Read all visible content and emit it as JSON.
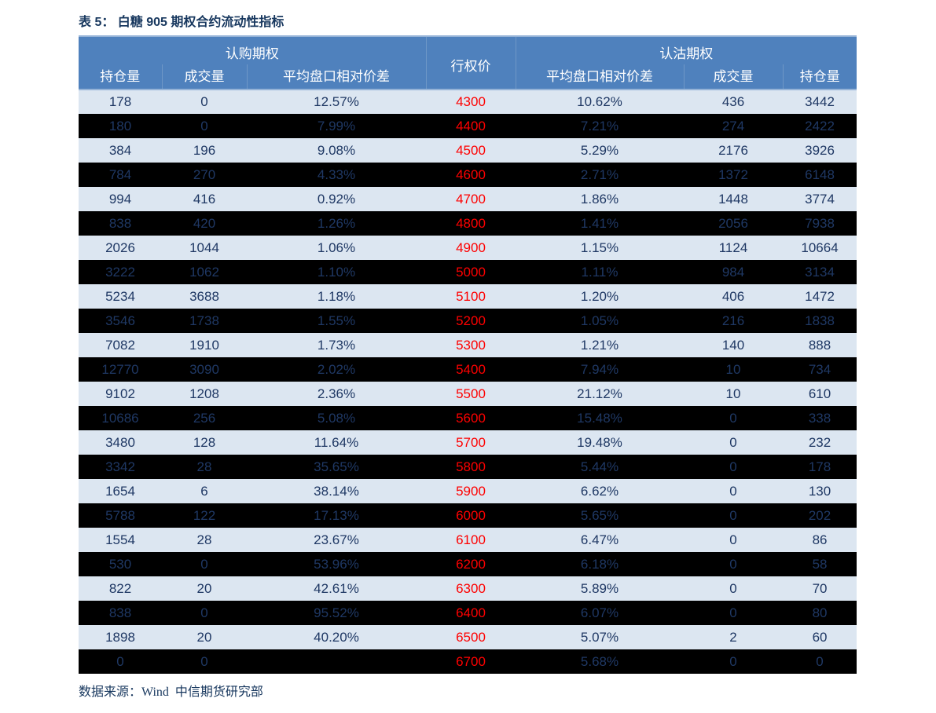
{
  "title": "表 5： 白糖 905 期权合约流动性指标",
  "table": {
    "group_headers": {
      "call": "认购期权",
      "strike": "行权价",
      "put": "认沽期权"
    },
    "sub_columns": [
      "持仓量",
      "成交量",
      "平均盘口相对价差",
      "平均盘口相对价差",
      "成交量",
      "持仓量"
    ],
    "rows": [
      [
        "178",
        "0",
        "12.57%",
        "4300",
        "10.62%",
        "436",
        "3442"
      ],
      [
        "180",
        "0",
        "7.99%",
        "4400",
        "7.21%",
        "274",
        "2422"
      ],
      [
        "384",
        "196",
        "9.08%",
        "4500",
        "5.29%",
        "2176",
        "3926"
      ],
      [
        "784",
        "270",
        "4.33%",
        "4600",
        "2.71%",
        "1372",
        "6148"
      ],
      [
        "994",
        "416",
        "0.92%",
        "4700",
        "1.86%",
        "1448",
        "3774"
      ],
      [
        "838",
        "420",
        "1.26%",
        "4800",
        "1.41%",
        "2056",
        "7938"
      ],
      [
        "2026",
        "1044",
        "1.06%",
        "4900",
        "1.15%",
        "1124",
        "10664"
      ],
      [
        "3222",
        "1062",
        "1.10%",
        "5000",
        "1.11%",
        "984",
        "3134"
      ],
      [
        "5234",
        "3688",
        "1.18%",
        "5100",
        "1.20%",
        "406",
        "1472"
      ],
      [
        "3546",
        "1738",
        "1.55%",
        "5200",
        "1.05%",
        "216",
        "1838"
      ],
      [
        "7082",
        "1910",
        "1.73%",
        "5300",
        "1.21%",
        "140",
        "888"
      ],
      [
        "12770",
        "3090",
        "2.02%",
        "5400",
        "7.94%",
        "10",
        "734"
      ],
      [
        "9102",
        "1208",
        "2.36%",
        "5500",
        "21.12%",
        "10",
        "610"
      ],
      [
        "10686",
        "256",
        "5.08%",
        "5600",
        "15.48%",
        "0",
        "338"
      ],
      [
        "3480",
        "128",
        "11.64%",
        "5700",
        "19.48%",
        "0",
        "232"
      ],
      [
        "3342",
        "28",
        "35.65%",
        "5800",
        "5.44%",
        "0",
        "178"
      ],
      [
        "1654",
        "6",
        "38.14%",
        "5900",
        "6.62%",
        "0",
        "130"
      ],
      [
        "5788",
        "122",
        "17.13%",
        "6000",
        "5.65%",
        "0",
        "202"
      ],
      [
        "1554",
        "28",
        "23.67%",
        "6100",
        "6.47%",
        "0",
        "86"
      ],
      [
        "530",
        "0",
        "53.96%",
        "6200",
        "6.18%",
        "0",
        "58"
      ],
      [
        "822",
        "20",
        "42.61%",
        "6300",
        "5.89%",
        "0",
        "70"
      ],
      [
        "838",
        "0",
        "95.52%",
        "6400",
        "6.07%",
        "0",
        "80"
      ],
      [
        "1898",
        "20",
        "40.20%",
        "6500",
        "5.07%",
        "2",
        "60"
      ],
      [
        "0",
        "0",
        "",
        "6700",
        "5.68%",
        "0",
        "0"
      ]
    ]
  },
  "footer": {
    "source": "数据来源：Wind  中信期货研究部"
  },
  "colors": {
    "header_bg": "#4f81bd",
    "header_text": "#ffffff",
    "row_light_bg": "#dce6f1",
    "row_dark_bg": "#000000",
    "data_text": "#1f3864",
    "strike_text": "#fe0000",
    "title_text": "#17375e"
  }
}
